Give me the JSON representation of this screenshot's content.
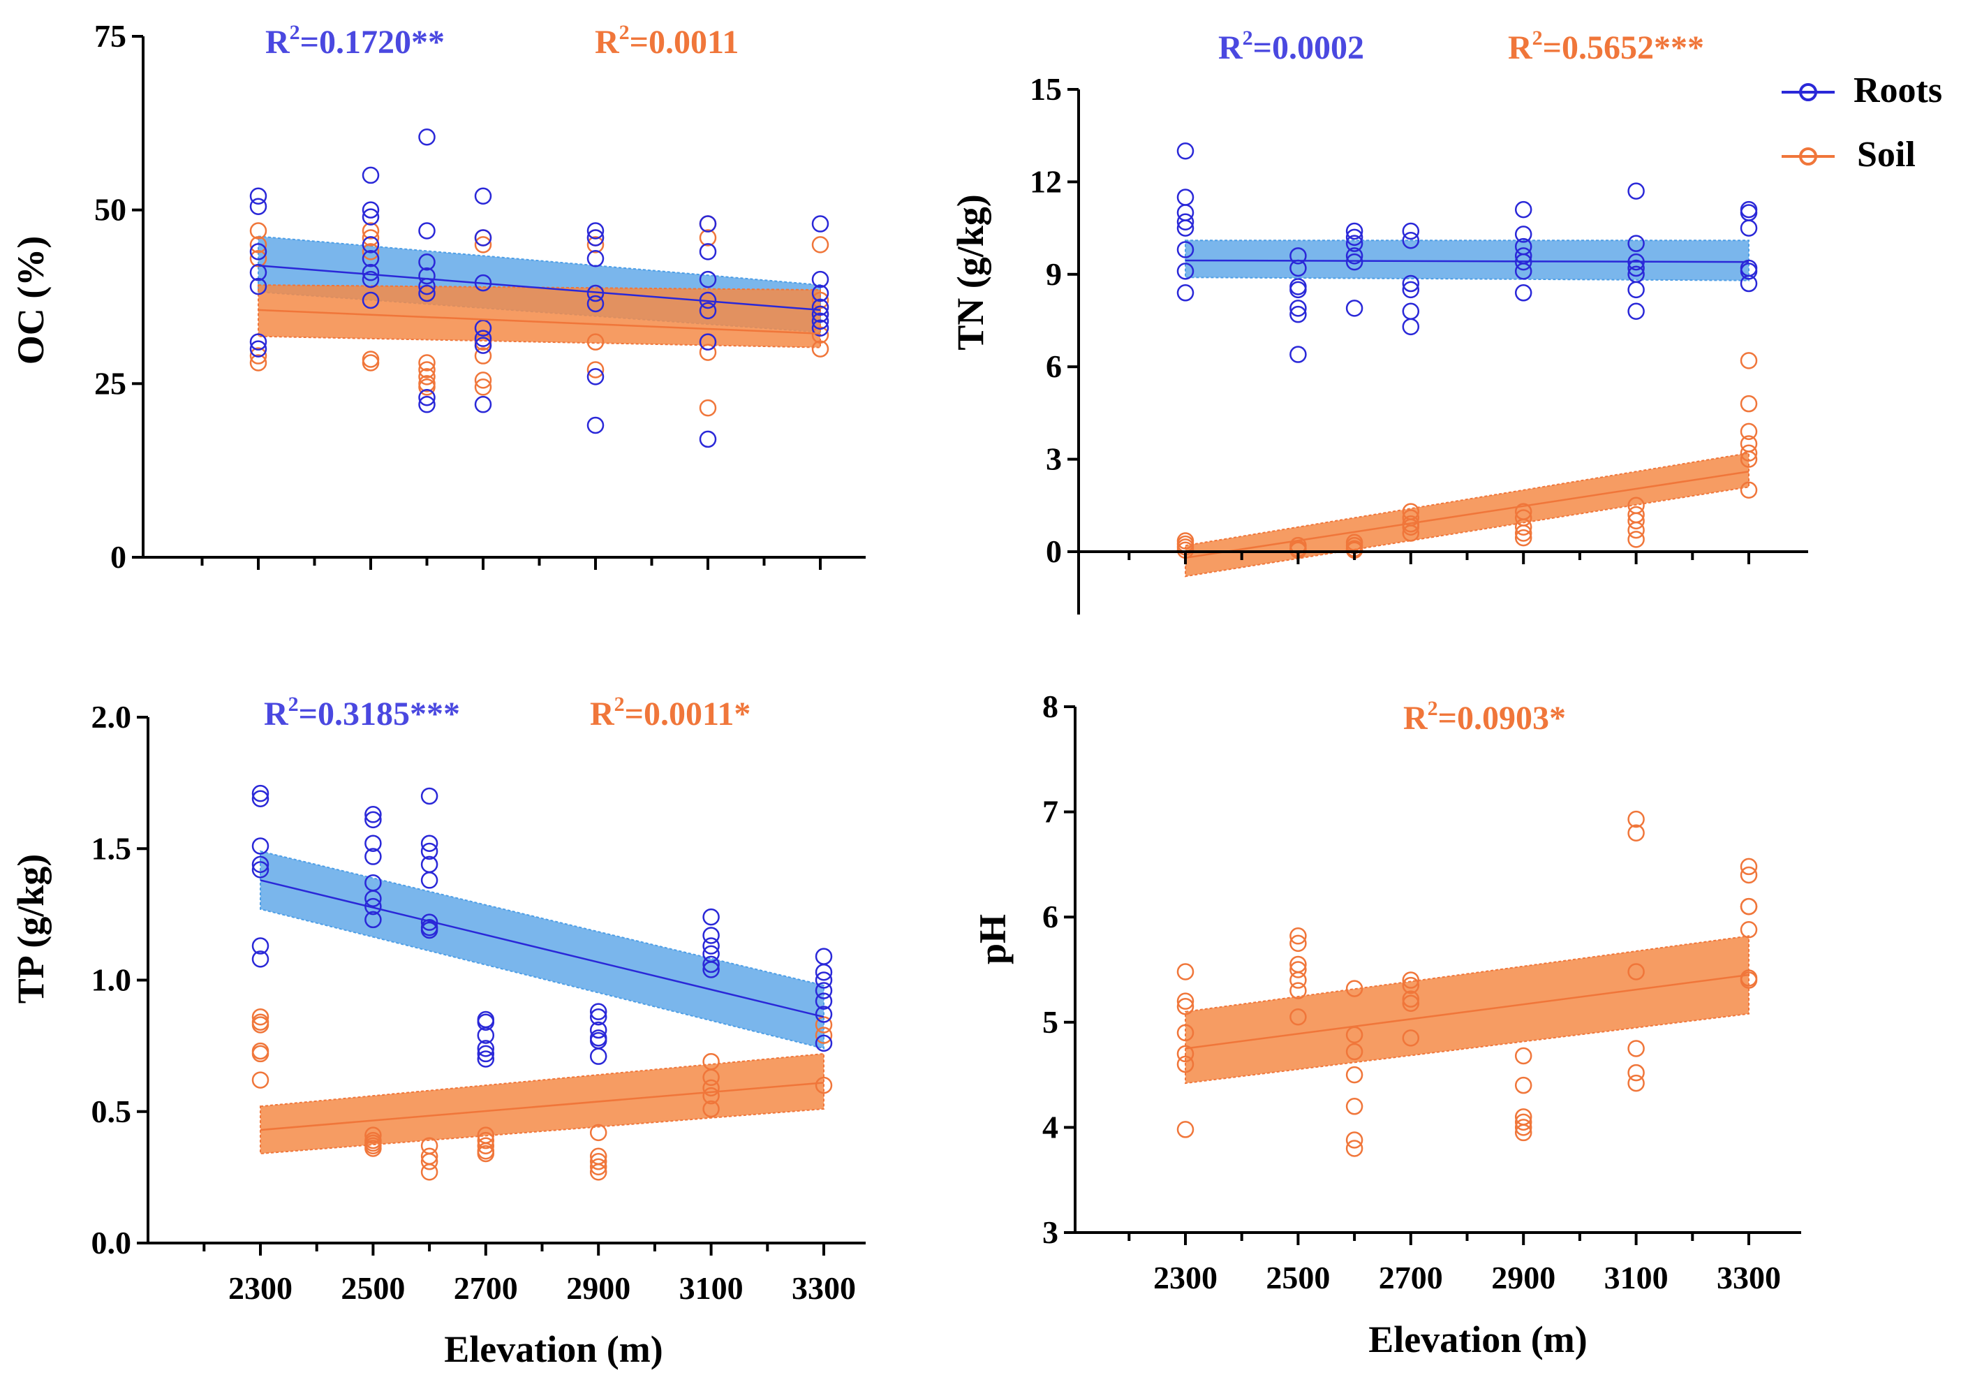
{
  "colors": {
    "roots": "#2a28d8",
    "soil": "#f0763a",
    "roots_band": "#4d9ee6",
    "soil_band": "#f58b48"
  },
  "legend": [
    {
      "label": "Roots",
      "color": "#2a28d8"
    },
    {
      "label": "Soil",
      "color": "#f0763a"
    }
  ],
  "x_title": "Elevation (m)",
  "chart_data": [
    {
      "id": "oc",
      "type": "scatter",
      "ylabel": "OC (%)",
      "ylim": [
        0,
        75
      ],
      "yticks": [
        "0",
        "25",
        "50",
        "75"
      ],
      "xticks": [],
      "r2_roots": "R²=0.1720**",
      "r2_soil": "R²=0.0011",
      "roots": {
        "x": [
          2300,
          2300,
          2300,
          2300,
          2300,
          2300,
          2300,
          2500,
          2500,
          2500,
          2500,
          2500,
          2500,
          2500,
          2500,
          2600,
          2600,
          2600,
          2600,
          2600,
          2600,
          2600,
          2600,
          2700,
          2700,
          2700,
          2700,
          2700,
          2700,
          2700,
          2900,
          2900,
          2900,
          2900,
          2900,
          2900,
          2900,
          3100,
          3100,
          3100,
          3100,
          3100,
          3100,
          3100,
          3300,
          3300,
          3300,
          3300,
          3300,
          3300,
          3300
        ],
        "y": [
          52,
          50.5,
          44,
          41,
          39,
          31,
          30,
          55,
          50,
          49,
          45,
          43,
          41,
          40,
          37,
          60.5,
          47,
          42.5,
          40.5,
          39,
          38,
          23,
          22,
          52,
          46,
          39.5,
          33,
          31.5,
          30.5,
          22,
          47,
          46,
          43,
          38,
          36.5,
          26,
          19,
          48,
          44,
          40,
          37,
          35.5,
          31,
          17,
          48,
          40,
          38,
          36,
          35,
          34,
          33
        ],
        "fit": {
          "x": [
            2300,
            3300
          ],
          "y": [
            42,
            35.6
          ],
          "lo": [
            38.2,
            32.4
          ],
          "hi": [
            46.2,
            39.2
          ]
        }
      },
      "soil": {
        "x": [
          2300,
          2300,
          2300,
          2300,
          2300,
          2500,
          2500,
          2500,
          2500,
          2500,
          2600,
          2600,
          2600,
          2600,
          2600,
          2700,
          2700,
          2700,
          2700,
          2700,
          2700,
          2900,
          2900,
          2900,
          2900,
          2900,
          3100,
          3100,
          3100,
          3100,
          3100,
          3300,
          3300,
          3300,
          3300,
          3300
        ],
        "y": [
          47,
          45,
          43,
          29,
          28,
          47,
          46,
          44,
          28.5,
          28,
          28,
          27,
          26,
          25,
          24.5,
          46,
          45,
          31,
          29,
          25.5,
          24.5,
          46,
          45,
          38,
          31,
          27,
          48,
          46,
          31,
          29.5,
          21.5,
          45,
          37,
          35,
          32,
          30
        ],
        "fit": {
          "x": [
            2300,
            3300
          ],
          "y": [
            35.6,
            32.2
          ],
          "lo": [
            31.8,
            30.2
          ],
          "hi": [
            39.2,
            38.5
          ]
        }
      }
    },
    {
      "id": "tn",
      "type": "scatter",
      "ylabel": "TN (g/kg)",
      "ylim": [
        -2,
        15
      ],
      "yticks": [
        "0",
        "3",
        "6",
        "9",
        "12",
        "15"
      ],
      "xticks": [],
      "r2_roots": "R²=0.0002",
      "r2_soil": "R²=0.5652***",
      "roots": {
        "x": [
          2300,
          2300,
          2300,
          2300,
          2300,
          2300,
          2300,
          2300,
          2500,
          2500,
          2500,
          2500,
          2500,
          2500,
          2500,
          2600,
          2600,
          2600,
          2600,
          2600,
          2600,
          2700,
          2700,
          2700,
          2700,
          2700,
          2700,
          2900,
          2900,
          2900,
          2900,
          2900,
          2900,
          2900,
          3100,
          3100,
          3100,
          3100,
          3100,
          3100,
          3100,
          3300,
          3300,
          3300,
          3300,
          3300,
          3300
        ],
        "y": [
          13,
          11.5,
          11,
          10.7,
          10.5,
          9.8,
          9.1,
          8.4,
          9.6,
          9.2,
          8.6,
          8.5,
          7.9,
          7.7,
          6.4,
          10.4,
          10.2,
          10,
          9.6,
          9.4,
          7.9,
          10.4,
          10.1,
          8.7,
          8.5,
          7.8,
          7.3,
          11.1,
          10.3,
          9.9,
          9.6,
          9.4,
          9.1,
          8.4,
          11.7,
          10,
          9.4,
          9.2,
          9,
          8.5,
          7.8,
          11.1,
          11,
          10.5,
          9.2,
          9.1,
          8.7
        ],
        "fit": {
          "x": [
            2300,
            3300
          ],
          "y": [
            9.45,
            9.4
          ],
          "lo": [
            8.9,
            8.8
          ],
          "hi": [
            10.1,
            10.1
          ]
        }
      },
      "soil": {
        "x": [
          2300,
          2300,
          2300,
          2300,
          2500,
          2500,
          2500,
          2600,
          2600,
          2600,
          2600,
          2700,
          2700,
          2700,
          2700,
          2700,
          2900,
          2900,
          2900,
          2900,
          2900,
          3100,
          3100,
          3100,
          3100,
          3100,
          3300,
          3300,
          3300,
          3300,
          3300,
          3300,
          3300
        ],
        "y": [
          0.35,
          0.25,
          0.15,
          0.05,
          0.2,
          0.1,
          0.05,
          0.3,
          0.2,
          0.1,
          0.05,
          1.3,
          1.1,
          0.9,
          0.8,
          0.6,
          1.3,
          1.1,
          0.8,
          0.6,
          0.45,
          1.5,
          1.2,
          1.0,
          0.7,
          0.4,
          6.2,
          4.8,
          3.9,
          3.5,
          3.2,
          3.0,
          2.0
        ],
        "fit": {
          "x": [
            2300,
            3300
          ],
          "y": [
            -0.2,
            2.6
          ],
          "lo": [
            -0.8,
            2.1
          ],
          "hi": [
            0.2,
            3.2
          ]
        }
      }
    },
    {
      "id": "tp",
      "type": "scatter",
      "ylabel": "TP (g/kg)",
      "ylim": [
        0,
        2
      ],
      "yticks": [
        "0.0",
        "0.5",
        "1.0",
        "1.5",
        "2.0"
      ],
      "xticks": [
        "2300",
        "2500",
        "2700",
        "2900",
        "3100",
        "3300"
      ],
      "r2_roots": "R²=0.3185***",
      "r2_soil": "R²=0.0011*",
      "roots": {
        "x": [
          2300,
          2300,
          2300,
          2300,
          2300,
          2300,
          2300,
          2500,
          2500,
          2500,
          2500,
          2500,
          2500,
          2500,
          2500,
          2600,
          2600,
          2600,
          2600,
          2600,
          2600,
          2600,
          2600,
          2700,
          2700,
          2700,
          2700,
          2700,
          2700,
          2900,
          2900,
          2900,
          2900,
          2900,
          2900,
          3100,
          3100,
          3100,
          3100,
          3100,
          3100,
          3300,
          3300,
          3300,
          3300,
          3300,
          3300,
          3300
        ],
        "y": [
          1.71,
          1.69,
          1.51,
          1.44,
          1.42,
          1.13,
          1.08,
          1.63,
          1.61,
          1.52,
          1.47,
          1.37,
          1.31,
          1.28,
          1.23,
          1.7,
          1.52,
          1.49,
          1.44,
          1.38,
          1.22,
          1.2,
          1.19,
          0.85,
          0.84,
          0.79,
          0.74,
          0.72,
          0.7,
          0.88,
          0.86,
          0.81,
          0.78,
          0.77,
          0.71,
          1.24,
          1.17,
          1.13,
          1.1,
          1.06,
          1.04,
          1.09,
          1.03,
          1.0,
          0.96,
          0.92,
          0.87,
          0.76
        ],
        "fit": {
          "x": [
            2300,
            3300
          ],
          "y": [
            1.38,
            0.86
          ],
          "lo": [
            1.27,
            0.74
          ],
          "hi": [
            1.49,
            0.98
          ]
        }
      },
      "soil": {
        "x": [
          2300,
          2300,
          2300,
          2300,
          2300,
          2300,
          2500,
          2500,
          2500,
          2500,
          2500,
          2600,
          2600,
          2600,
          2600,
          2700,
          2700,
          2700,
          2700,
          2700,
          2900,
          2900,
          2900,
          2900,
          2900,
          3100,
          3100,
          3100,
          3100,
          3100,
          3300,
          3300,
          3300
        ],
        "y": [
          0.86,
          0.84,
          0.83,
          0.73,
          0.72,
          0.62,
          0.41,
          0.39,
          0.38,
          0.37,
          0.36,
          0.37,
          0.33,
          0.31,
          0.27,
          0.41,
          0.39,
          0.37,
          0.35,
          0.34,
          0.42,
          0.33,
          0.31,
          0.29,
          0.27,
          0.69,
          0.63,
          0.59,
          0.56,
          0.51,
          0.83,
          0.79,
          0.6
        ],
        "fit": {
          "x": [
            2300,
            3300
          ],
          "y": [
            0.43,
            0.61
          ],
          "lo": [
            0.34,
            0.51
          ],
          "hi": [
            0.52,
            0.72
          ]
        }
      }
    },
    {
      "id": "ph",
      "type": "scatter",
      "ylabel": "pH",
      "ylim": [
        3,
        8
      ],
      "yticks": [
        "3",
        "4",
        "5",
        "6",
        "7",
        "8"
      ],
      "xticks": [
        "2300",
        "2500",
        "2700",
        "2900",
        "3100",
        "3300"
      ],
      "r2_soil": "R²=0.0903*",
      "soil": {
        "x": [
          2300,
          2300,
          2300,
          2300,
          2300,
          2300,
          2300,
          2500,
          2500,
          2500,
          2500,
          2500,
          2500,
          2500,
          2600,
          2600,
          2600,
          2600,
          2600,
          2600,
          2600,
          2700,
          2700,
          2700,
          2700,
          2700,
          2900,
          2900,
          2900,
          2900,
          2900,
          2900,
          3100,
          3100,
          3100,
          3100,
          3100,
          3100,
          3300,
          3300,
          3300,
          3300,
          3300,
          3300,
          3300
        ],
        "y": [
          5.48,
          5.2,
          5.15,
          4.9,
          4.7,
          4.6,
          3.98,
          5.82,
          5.75,
          5.55,
          5.5,
          5.4,
          5.3,
          5.05,
          5.32,
          4.88,
          4.72,
          4.5,
          4.2,
          3.88,
          3.8,
          5.4,
          5.35,
          5.22,
          5.18,
          4.85,
          4.68,
          4.4,
          4.1,
          4.05,
          4.0,
          3.95,
          6.93,
          6.8,
          5.48,
          4.75,
          4.52,
          4.42,
          6.48,
          6.4,
          6.1,
          6.1,
          5.88,
          5.42,
          5.4
        ],
        "fit": {
          "x": [
            2300,
            3300
          ],
          "y": [
            4.75,
            5.45
          ],
          "lo": [
            4.42,
            5.08
          ],
          "hi": [
            5.1,
            5.82
          ]
        }
      }
    }
  ]
}
